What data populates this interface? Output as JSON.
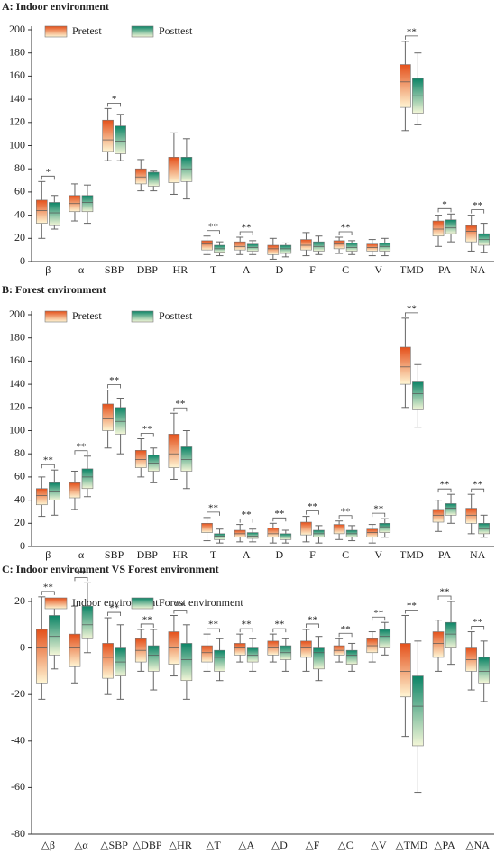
{
  "chart_data": [
    {
      "type": "box",
      "title": "A: Indoor environment",
      "categories": [
        "β",
        "α",
        "SBP",
        "DBP",
        "HR",
        "T",
        "A",
        "D",
        "F",
        "C",
        "V",
        "TMD",
        "PA",
        "NA"
      ],
      "ylim": [
        0,
        200
      ],
      "yticks": [
        0,
        20,
        40,
        60,
        80,
        100,
        120,
        140,
        160,
        180,
        200
      ],
      "significance": [
        "*",
        null,
        "*",
        null,
        null,
        "**",
        "**",
        null,
        null,
        "**",
        null,
        "**",
        "*",
        "**"
      ],
      "series": [
        {
          "name": "Pretest",
          "colors": [
            "#e4501a",
            "#fff6d4"
          ],
          "boxes": [
            {
              "min": 20,
              "q1": 33,
              "median": 44,
              "q3": 53,
              "max": 69
            },
            {
              "min": 35,
              "q1": 43,
              "median": 50,
              "q3": 57,
              "max": 67
            },
            {
              "min": 87,
              "q1": 95,
              "median": 105,
              "q3": 122,
              "max": 132
            },
            {
              "min": 61,
              "q1": 67,
              "median": 73,
              "q3": 80,
              "max": 88
            },
            {
              "min": 58,
              "q1": 68,
              "median": 79,
              "q3": 90,
              "max": 111
            },
            {
              "min": 6,
              "q1": 10,
              "median": 15,
              "q3": 18,
              "max": 22
            },
            {
              "min": 6,
              "q1": 10,
              "median": 13,
              "q3": 17,
              "max": 21
            },
            {
              "min": 2,
              "q1": 6,
              "median": 11,
              "q3": 14,
              "max": 20
            },
            {
              "min": 5,
              "q1": 10,
              "median": 14,
              "q3": 19,
              "max": 25
            },
            {
              "min": 7,
              "q1": 11,
              "median": 15,
              "q3": 18,
              "max": 21
            },
            {
              "min": 5,
              "q1": 9,
              "median": 12,
              "q3": 15,
              "max": 19
            },
            {
              "min": 113,
              "q1": 133,
              "median": 155,
              "q3": 170,
              "max": 190
            },
            {
              "min": 13,
              "q1": 22,
              "median": 28,
              "q3": 35,
              "max": 40
            },
            {
              "min": 9,
              "q1": 17,
              "median": 26,
              "q3": 31,
              "max": 40
            }
          ]
        },
        {
          "name": "Posttest",
          "colors": [
            "#0b8466",
            "#f4f7d8"
          ],
          "boxes": [
            {
              "min": 28,
              "q1": 31,
              "median": 42,
              "q3": 51,
              "max": 57
            },
            {
              "min": 33,
              "q1": 43,
              "median": 51,
              "q3": 57,
              "max": 66
            },
            {
              "min": 87,
              "q1": 93,
              "median": 104,
              "q3": 117,
              "max": 127
            },
            {
              "min": 61,
              "q1": 65,
              "median": 71,
              "q3": 77,
              "max": 78
            },
            {
              "min": 54,
              "q1": 69,
              "median": 80,
              "q3": 90,
              "max": 106
            },
            {
              "min": 5,
              "q1": 8,
              "median": 11,
              "q3": 14,
              "max": 17
            },
            {
              "min": 6,
              "q1": 9,
              "median": 12,
              "q3": 15,
              "max": 18
            },
            {
              "min": 4,
              "q1": 7,
              "median": 11,
              "q3": 14,
              "max": 16
            },
            {
              "min": 6,
              "q1": 9,
              "median": 13,
              "q3": 17,
              "max": 22
            },
            {
              "min": 6,
              "q1": 9,
              "median": 12,
              "q3": 16,
              "max": 18
            },
            {
              "min": 5,
              "q1": 9,
              "median": 13,
              "q3": 16,
              "max": 20
            },
            {
              "min": 118,
              "q1": 128,
              "median": 143,
              "q3": 158,
              "max": 180
            },
            {
              "min": 17,
              "q1": 24,
              "median": 29,
              "q3": 36,
              "max": 41
            },
            {
              "min": 8,
              "q1": 14,
              "median": 19,
              "q3": 24,
              "max": 33
            }
          ]
        }
      ]
    },
    {
      "type": "box",
      "title": "B: Forest environment",
      "categories": [
        "β",
        "α",
        "SBP",
        "DBP",
        "HR",
        "T",
        "A",
        "D",
        "F",
        "C",
        "V",
        "TMD",
        "PA",
        "NA"
      ],
      "ylim": [
        0,
        200
      ],
      "yticks": [
        0,
        20,
        40,
        60,
        80,
        100,
        120,
        140,
        160,
        180,
        200
      ],
      "significance": [
        "**",
        "**",
        "**",
        "**",
        "**",
        "**",
        "**",
        "**",
        "**",
        "**",
        "**",
        "**",
        "**",
        "**"
      ],
      "series": [
        {
          "name": "Pretest",
          "colors": [
            "#e4501a",
            "#fff6d4"
          ],
          "boxes": [
            {
              "min": 26,
              "q1": 36,
              "median": 44,
              "q3": 50,
              "max": 60
            },
            {
              "min": 32,
              "q1": 42,
              "median": 48,
              "q3": 55,
              "max": 65
            },
            {
              "min": 85,
              "q1": 100,
              "median": 110,
              "q3": 123,
              "max": 135
            },
            {
              "min": 60,
              "q1": 68,
              "median": 75,
              "q3": 83,
              "max": 93
            },
            {
              "min": 58,
              "q1": 68,
              "median": 80,
              "q3": 97,
              "max": 115
            },
            {
              "min": 5,
              "q1": 12,
              "median": 16,
              "q3": 20,
              "max": 25
            },
            {
              "min": 4,
              "q1": 8,
              "median": 11,
              "q3": 14,
              "max": 19
            },
            {
              "min": 3,
              "q1": 8,
              "median": 11,
              "q3": 16,
              "max": 20
            },
            {
              "min": 4,
              "q1": 10,
              "median": 16,
              "q3": 21,
              "max": 26
            },
            {
              "min": 6,
              "q1": 11,
              "median": 16,
              "q3": 19,
              "max": 22
            },
            {
              "min": 3,
              "q1": 8,
              "median": 12,
              "q3": 15,
              "max": 19
            },
            {
              "min": 120,
              "q1": 140,
              "median": 155,
              "q3": 172,
              "max": 197
            },
            {
              "min": 13,
              "q1": 21,
              "median": 27,
              "q3": 32,
              "max": 40
            },
            {
              "min": 11,
              "q1": 20,
              "median": 27,
              "q3": 33,
              "max": 45
            }
          ]
        },
        {
          "name": "Posttest",
          "colors": [
            "#0b8466",
            "#f4f7d8"
          ],
          "boxes": [
            {
              "min": 27,
              "q1": 40,
              "median": 47,
              "q3": 55,
              "max": 66
            },
            {
              "min": 43,
              "q1": 50,
              "median": 60,
              "q3": 67,
              "max": 78
            },
            {
              "min": 80,
              "q1": 97,
              "median": 108,
              "q3": 120,
              "max": 128
            },
            {
              "min": 55,
              "q1": 65,
              "median": 72,
              "q3": 79,
              "max": 85
            },
            {
              "min": 50,
              "q1": 65,
              "median": 75,
              "q3": 86,
              "max": 100
            },
            {
              "min": 3,
              "q1": 6,
              "median": 9,
              "q3": 11,
              "max": 15
            },
            {
              "min": 4,
              "q1": 7,
              "median": 9,
              "q3": 12,
              "max": 15
            },
            {
              "min": 3,
              "q1": 6,
              "median": 8,
              "q3": 11,
              "max": 14
            },
            {
              "min": 3,
              "q1": 8,
              "median": 11,
              "q3": 14,
              "max": 18
            },
            {
              "min": 5,
              "q1": 8,
              "median": 11,
              "q3": 14,
              "max": 18
            },
            {
              "min": 8,
              "q1": 12,
              "median": 17,
              "q3": 20,
              "max": 24
            },
            {
              "min": 103,
              "q1": 118,
              "median": 132,
              "q3": 142,
              "max": 157
            },
            {
              "min": 20,
              "q1": 27,
              "median": 33,
              "q3": 37,
              "max": 45
            },
            {
              "min": 8,
              "q1": 11,
              "median": 15,
              "q3": 20,
              "max": 27
            }
          ]
        }
      ]
    },
    {
      "type": "box",
      "title": "C: Indoor environment VS Forest  environment",
      "categories": [
        "△β",
        "△α",
        "△SBP",
        "△DBP",
        "△HR",
        "△T",
        "△A",
        "△D",
        "△F",
        "△C",
        "△V",
        "△TMD",
        "△PA",
        "△NA"
      ],
      "ylim": [
        -80,
        20
      ],
      "yticks": [
        -80,
        -60,
        -40,
        -20,
        0,
        20
      ],
      "significance": [
        "**",
        "**",
        "**",
        "**",
        "**",
        "**",
        "**",
        "**",
        "**",
        "**",
        "**",
        "**",
        "**",
        "**"
      ],
      "series": [
        {
          "name": "Indoor environment",
          "colors": [
            "#e4501a",
            "#fff6d4"
          ],
          "boxes": [
            {
              "min": -22,
              "q1": -15,
              "median": 0,
              "q3": 8,
              "max": 22
            },
            {
              "min": -15,
              "q1": -8,
              "median": 0,
              "q3": 6,
              "max": 18
            },
            {
              "min": -20,
              "q1": -13,
              "median": -4,
              "q3": 2,
              "max": 13
            },
            {
              "min": -10,
              "q1": -6,
              "median": -1,
              "q3": 4,
              "max": 8
            },
            {
              "min": -12,
              "q1": -7,
              "median": 0,
              "q3": 7,
              "max": 14
            },
            {
              "min": -10,
              "q1": -6,
              "median": -2,
              "q3": 1,
              "max": 6
            },
            {
              "min": -6,
              "q1": -3,
              "median": 0,
              "q3": 2,
              "max": 6
            },
            {
              "min": -6,
              "q1": -3,
              "median": 0,
              "q3": 3,
              "max": 6
            },
            {
              "min": -10,
              "q1": -4,
              "median": 0,
              "q3": 3,
              "max": 8
            },
            {
              "min": -6,
              "q1": -3,
              "median": -1,
              "q3": 1,
              "max": 4
            },
            {
              "min": -6,
              "q1": -2,
              "median": 1,
              "q3": 4,
              "max": 7
            },
            {
              "min": -38,
              "q1": -21,
              "median": -10,
              "q3": 2,
              "max": 14
            },
            {
              "min": -10,
              "q1": -4,
              "median": 2,
              "q3": 7,
              "max": 12
            },
            {
              "min": -18,
              "q1": -10,
              "median": -5,
              "q3": 0,
              "max": 7
            }
          ]
        },
        {
          "name": "Forest environment",
          "colors": [
            "#0b8466",
            "#f4f7d8"
          ],
          "boxes": [
            {
              "min": -9,
              "q1": -3,
              "median": 5,
              "q3": 14,
              "max": 20
            },
            {
              "min": -2,
              "q1": 4,
              "median": 10,
              "q3": 18,
              "max": 28
            },
            {
              "min": -22,
              "q1": -12,
              "median": -6,
              "q3": 0,
              "max": 10
            },
            {
              "min": -18,
              "q1": -10,
              "median": -3,
              "q3": 1,
              "max": 8
            },
            {
              "min": -22,
              "q1": -14,
              "median": -5,
              "q3": 2,
              "max": 10
            },
            {
              "min": -14,
              "q1": -10,
              "median": -4,
              "q3": -1,
              "max": 4
            },
            {
              "min": -10,
              "q1": -6,
              "median": -3,
              "q3": 0,
              "max": 4
            },
            {
              "min": -10,
              "q1": -5,
              "median": -2,
              "q3": 1,
              "max": 4
            },
            {
              "min": -14,
              "q1": -9,
              "median": -2,
              "q3": 0,
              "max": 5
            },
            {
              "min": -10,
              "q1": -7,
              "median": -3,
              "q3": -1,
              "max": 2
            },
            {
              "min": -3,
              "q1": 0,
              "median": 5,
              "q3": 8,
              "max": 11
            },
            {
              "min": -62,
              "q1": -42,
              "median": -25,
              "q3": -12,
              "max": 3
            },
            {
              "min": -7,
              "q1": 0,
              "median": 6,
              "q3": 11,
              "max": 20
            },
            {
              "min": -23,
              "q1": -15,
              "median": -10,
              "q3": -4,
              "max": 3
            }
          ]
        }
      ]
    }
  ]
}
